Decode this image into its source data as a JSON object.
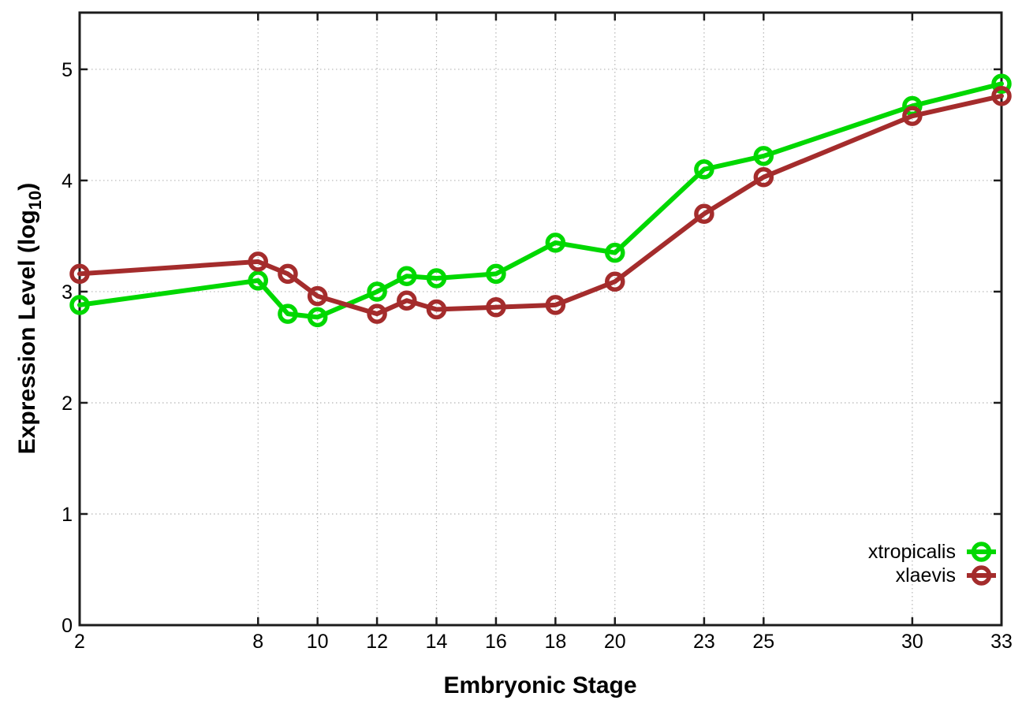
{
  "chart_data": {
    "type": "line",
    "title": "",
    "xlabel": "Embryonic Stage",
    "ylabel": "Expression Level (log10)",
    "ylabel_parts": {
      "main": "Expression Level (log",
      "sub": "10",
      "end": ")"
    },
    "x": [
      2,
      8,
      9,
      10,
      12,
      13,
      14,
      16,
      18,
      20,
      23,
      25,
      30,
      33
    ],
    "xticks": [
      2,
      8,
      10,
      12,
      14,
      16,
      18,
      20,
      23,
      25,
      30,
      33
    ],
    "xtick_labels": [
      "2",
      "8",
      "10",
      "12",
      "14",
      "16",
      "18",
      "20",
      "23",
      "25",
      "30",
      "33"
    ],
    "yticks": [
      0,
      1,
      2,
      3,
      4,
      5
    ],
    "ytick_labels": [
      "0",
      "1",
      "2",
      "3",
      "4",
      "5"
    ],
    "xlim": [
      2,
      33
    ],
    "ylim": [
      0,
      5.51
    ],
    "grid": true,
    "grid_style": "dotted",
    "legend_position": "inside-bottom-right",
    "series": [
      {
        "name": "xtropicalis",
        "color": "#00d800",
        "marker": "open-circle",
        "values": [
          2.88,
          3.1,
          2.8,
          2.77,
          3.0,
          3.14,
          3.12,
          3.16,
          3.44,
          3.35,
          4.1,
          4.22,
          4.67,
          4.87
        ]
      },
      {
        "name": "xlaevis",
        "color": "#a42c2c",
        "marker": "open-circle",
        "values": [
          3.16,
          3.27,
          3.16,
          2.96,
          2.8,
          2.92,
          2.84,
          2.86,
          2.88,
          3.09,
          3.7,
          4.03,
          4.58,
          4.76
        ]
      }
    ]
  },
  "colors": {
    "background": "#ffffff",
    "axis": "#1c1c1c",
    "grid": "#b5b5b5",
    "text": "#000000"
  }
}
